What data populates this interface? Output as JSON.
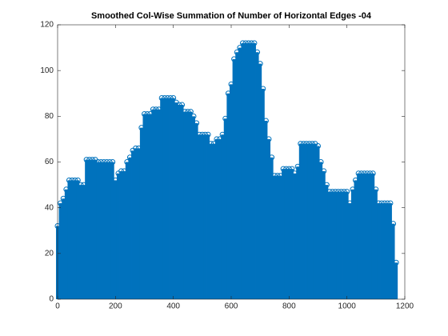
{
  "chart_data": {
    "type": "stem",
    "title": "Smoothed Col-Wise Summation of Number of Horizontal Edges -04",
    "color": "#0072bd",
    "x": [
      0,
      10,
      20,
      30,
      40,
      50,
      60,
      70,
      80,
      90,
      100,
      110,
      120,
      130,
      140,
      150,
      160,
      170,
      180,
      190,
      200,
      210,
      220,
      230,
      240,
      250,
      260,
      270,
      280,
      290,
      300,
      310,
      320,
      330,
      340,
      350,
      360,
      370,
      380,
      390,
      400,
      410,
      420,
      430,
      440,
      450,
      460,
      470,
      480,
      490,
      500,
      510,
      520,
      530,
      540,
      550,
      560,
      570,
      580,
      590,
      600,
      610,
      620,
      630,
      640,
      650,
      660,
      670,
      680,
      690,
      700,
      710,
      720,
      730,
      740,
      750,
      760,
      770,
      780,
      790,
      800,
      810,
      820,
      830,
      840,
      850,
      860,
      870,
      880,
      890,
      900,
      910,
      920,
      930,
      940,
      950,
      960,
      970,
      980,
      990,
      1000,
      1010,
      1020,
      1030,
      1040,
      1050,
      1060,
      1070,
      1080,
      1090,
      1100,
      1110,
      1120,
      1130,
      1140,
      1150,
      1160,
      1170
    ],
    "values": [
      32,
      42,
      44,
      48,
      52,
      52,
      52,
      52,
      50,
      50,
      61,
      61,
      61,
      61,
      60,
      60,
      60,
      60,
      60,
      60,
      52,
      55,
      56,
      56,
      60,
      62,
      65,
      66,
      66,
      75,
      81,
      81,
      81,
      83,
      83,
      83,
      88,
      88,
      88,
      88,
      88,
      86,
      85,
      85,
      82,
      82,
      82,
      80,
      77,
      72,
      72,
      72,
      72,
      68,
      68,
      70,
      70,
      72,
      79,
      90,
      94,
      105,
      108,
      110,
      112,
      112,
      112,
      112,
      112,
      108,
      103,
      92,
      78,
      70,
      62,
      54,
      54,
      54,
      57,
      57,
      57,
      57,
      55,
      58,
      68,
      68,
      68,
      68,
      68,
      68,
      67,
      60,
      56,
      50,
      47,
      47,
      47,
      47,
      47,
      47,
      47,
      42,
      48,
      52,
      55,
      55,
      55,
      55,
      55,
      55,
      48,
      42,
      42,
      42,
      42,
      42,
      33,
      16
    ],
    "xlim": [
      0,
      1200
    ],
    "xticks": [
      0,
      200,
      400,
      600,
      800,
      1000,
      1200
    ],
    "ylim": [
      0,
      120
    ],
    "yticks": [
      0,
      20,
      40,
      60,
      80,
      100,
      120
    ]
  }
}
